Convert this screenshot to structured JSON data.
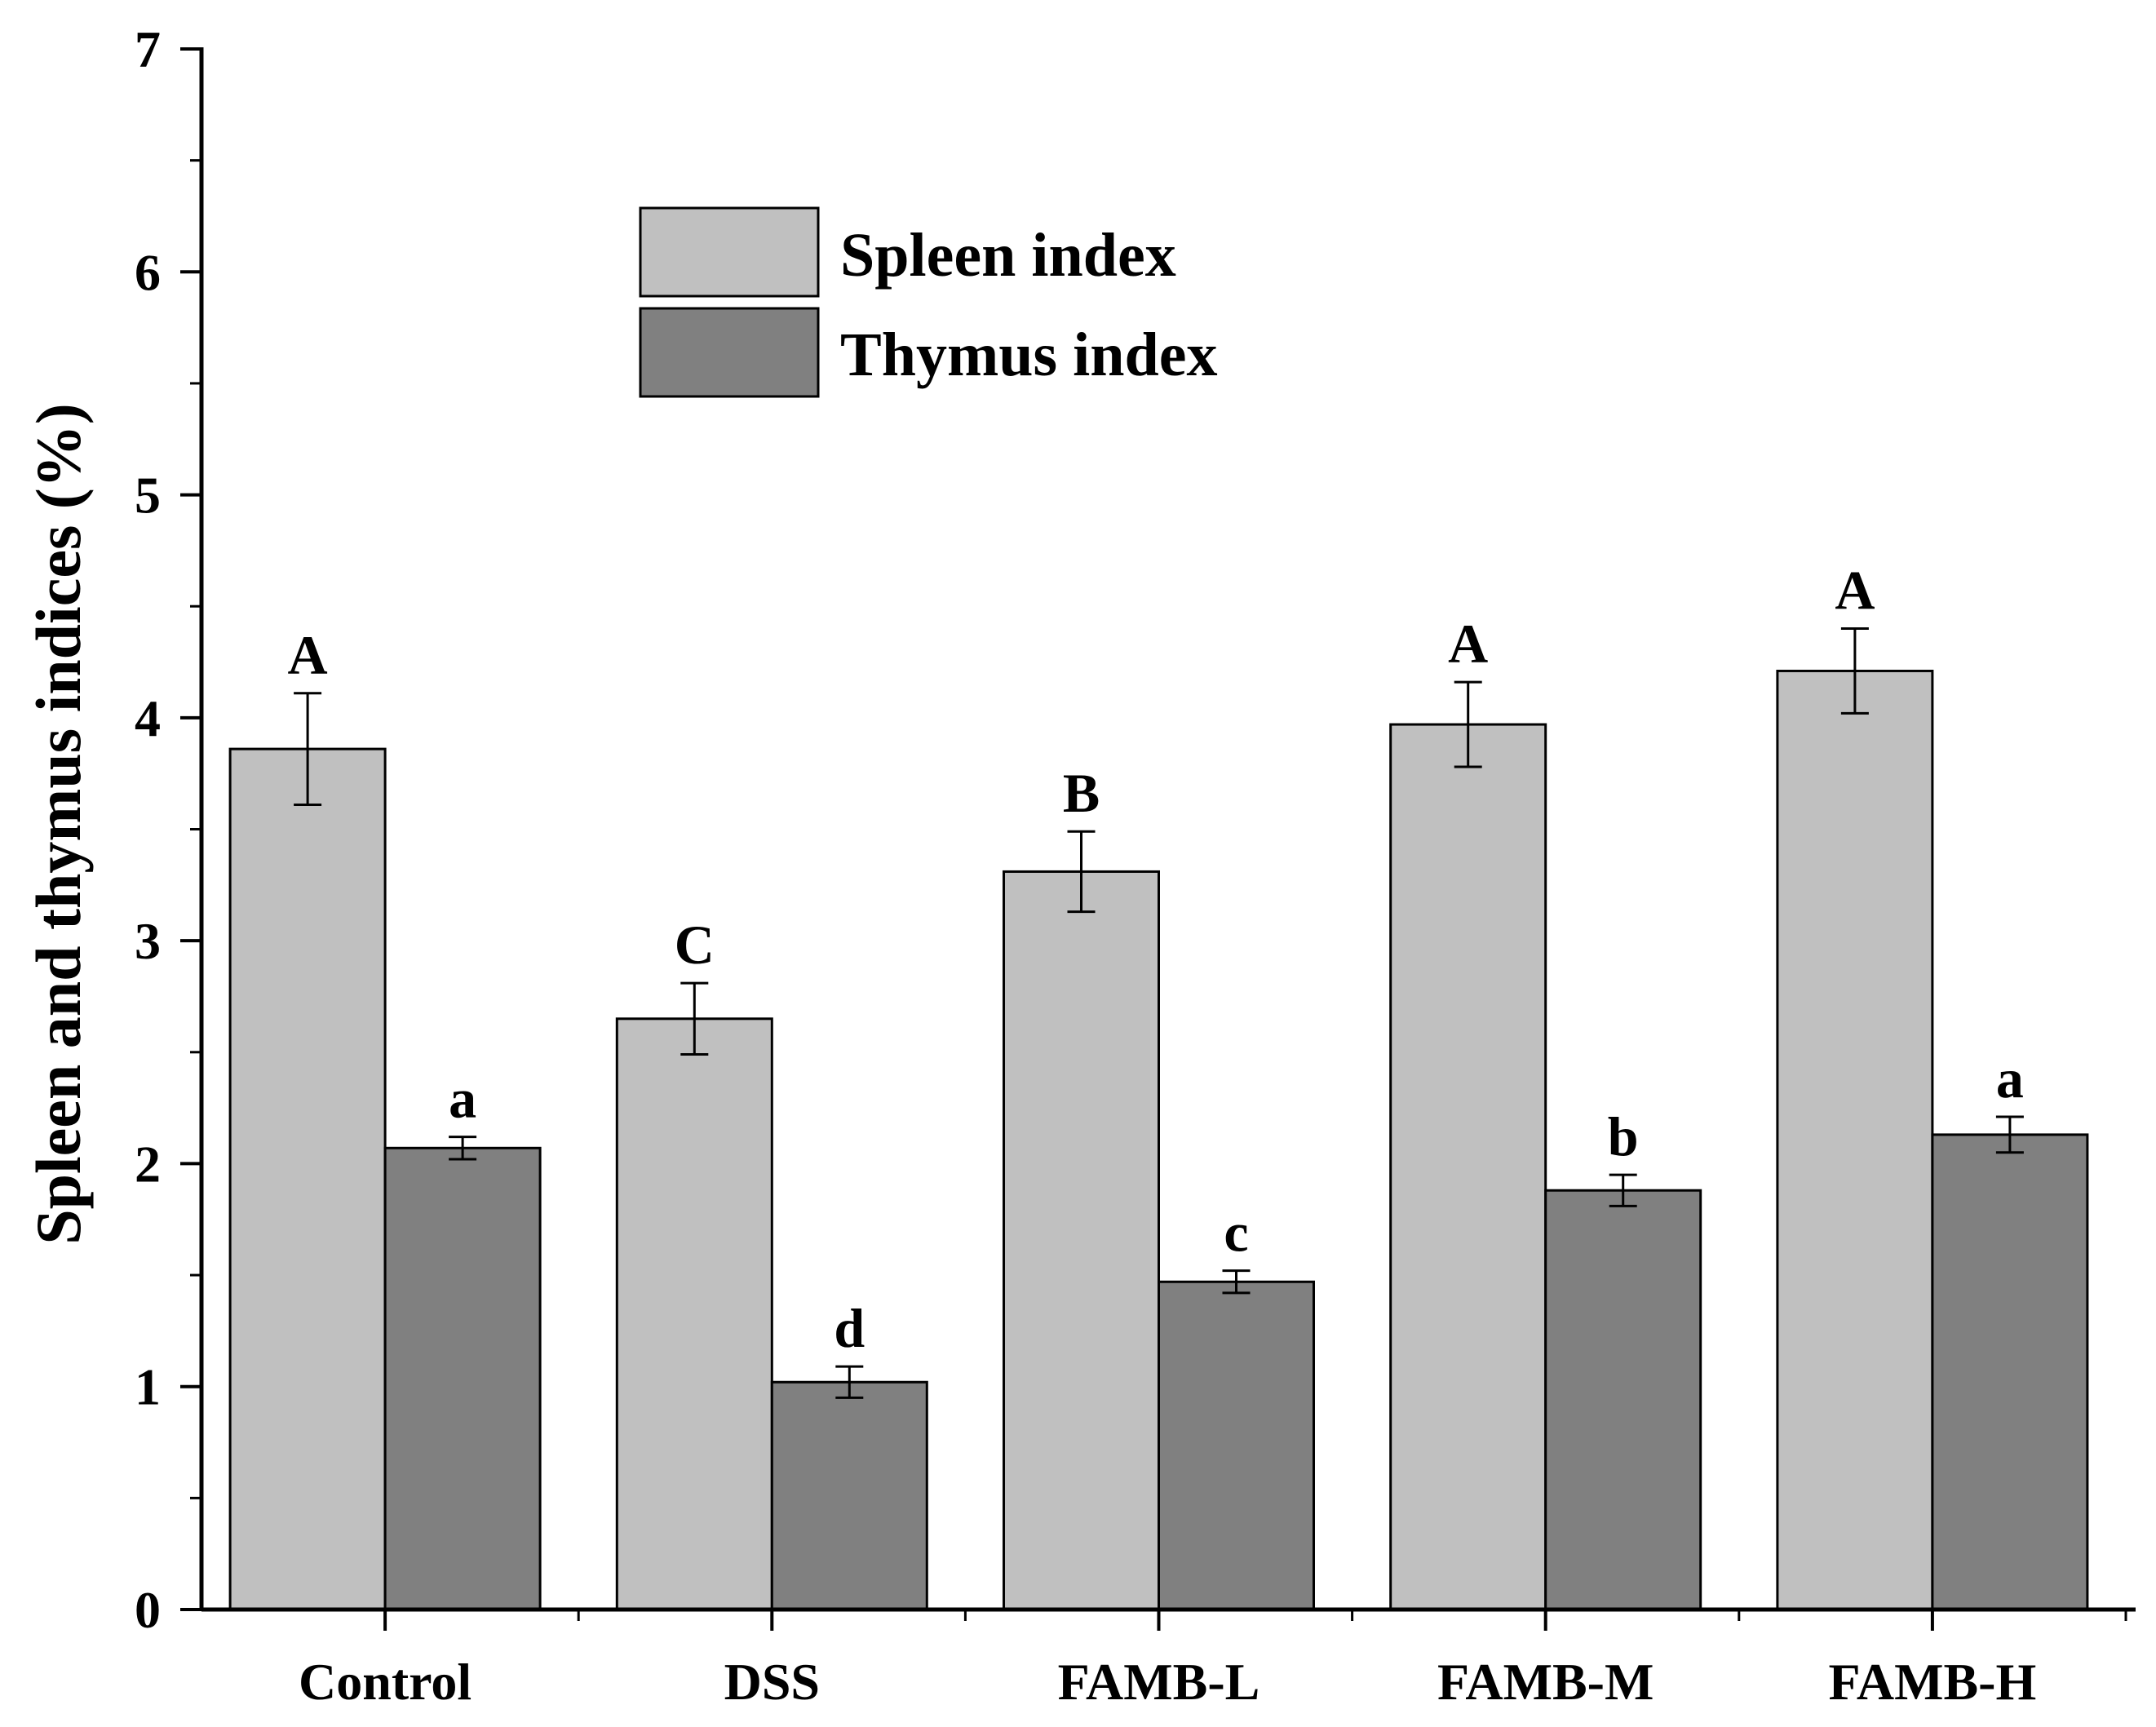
{
  "chart_data": {
    "type": "bar",
    "title": "",
    "xlabel": "",
    "ylabel": "Spleen and thymus indices (%)",
    "ylim": [
      0,
      7
    ],
    "yticks": [
      0,
      1,
      2,
      3,
      4,
      5,
      6,
      7
    ],
    "categories": [
      "Control",
      "DSS",
      "FAMB-L",
      "FAMB-M",
      "FAMB-H"
    ],
    "series": [
      {
        "name": "Spleen index",
        "color": "#c0c0c0",
        "values": [
          3.86,
          2.65,
          3.31,
          3.97,
          4.21
        ],
        "errors": [
          0.25,
          0.16,
          0.18,
          0.19,
          0.19
        ],
        "letters": [
          "A",
          "C",
          "B",
          "A",
          "A"
        ]
      },
      {
        "name": "Thymus index",
        "color": "#808080",
        "values": [
          2.07,
          1.02,
          1.47,
          1.88,
          2.13
        ],
        "errors": [
          0.05,
          0.07,
          0.05,
          0.07,
          0.08
        ],
        "letters": [
          "a",
          "d",
          "c",
          "b",
          "a"
        ]
      }
    ],
    "legend_position": "top-left"
  }
}
